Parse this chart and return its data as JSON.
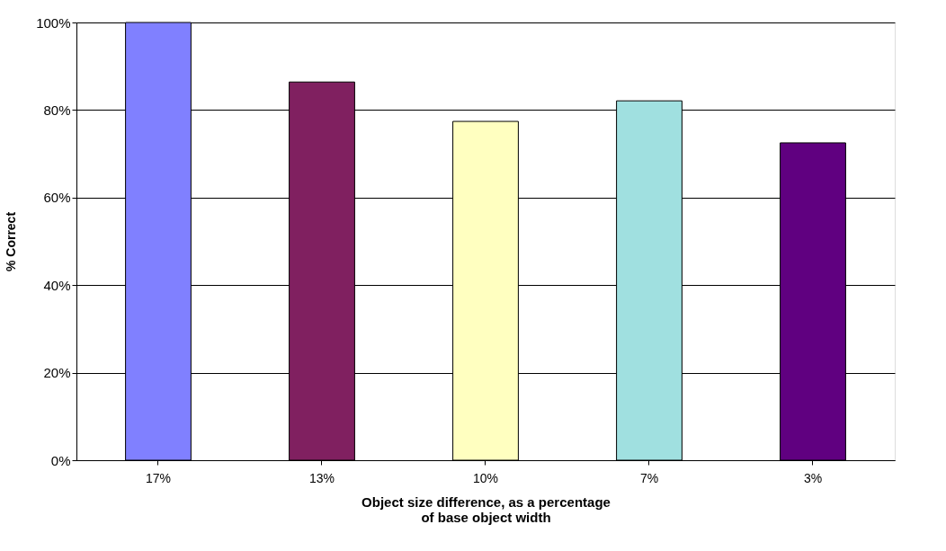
{
  "chart_data": {
    "type": "bar",
    "xlabel": "Object size difference, as a percentage\nof base object width",
    "ylabel": "% Correct",
    "categories": [
      "17%",
      "13%",
      "10%",
      "7%",
      "3%"
    ],
    "values": [
      100,
      86.4,
      77.4,
      82.1,
      72.5
    ],
    "colors": [
      "#8080ff",
      "#802060",
      "#ffffc0",
      "#a0e0e0",
      "#600080"
    ],
    "ylim": [
      0,
      100
    ],
    "yticks": [
      {
        "value": 0,
        "label": "0%"
      },
      {
        "value": 20,
        "label": "20%"
      },
      {
        "value": 40,
        "label": "40%"
      },
      {
        "value": 60,
        "label": "60%"
      },
      {
        "value": 80,
        "label": "80%"
      },
      {
        "value": 100,
        "label": "100%"
      }
    ],
    "grid": "y",
    "legend": false
  }
}
